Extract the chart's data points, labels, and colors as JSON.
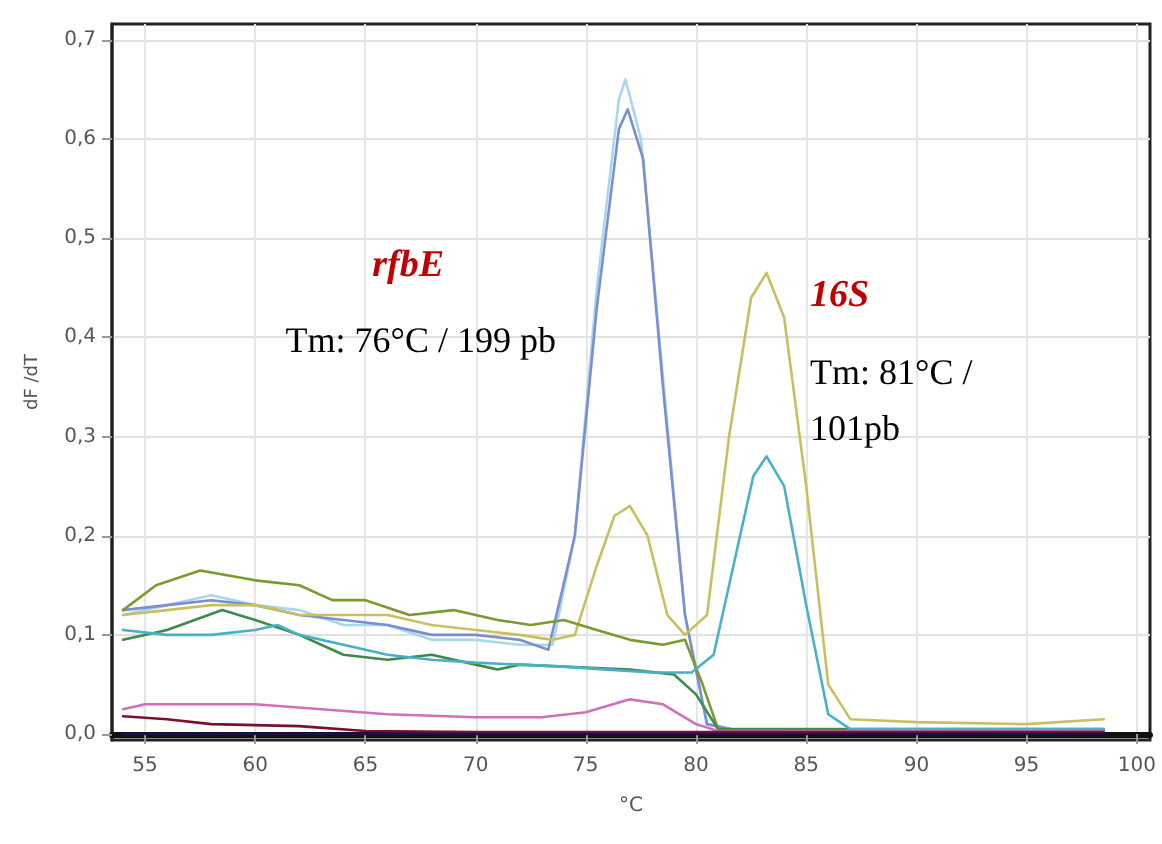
{
  "chart_data": {
    "type": "line",
    "xlabel": "°C",
    "ylabel": "dF /dT",
    "xlim": [
      53.5,
      100.6
    ],
    "xticks": [
      55,
      60,
      65,
      70,
      75,
      80,
      85,
      90,
      95,
      100
    ],
    "ylim": [
      -0.006,
      0.716
    ],
    "yticks": [
      {
        "value": 0,
        "label": "0,0"
      },
      {
        "value": 0.1,
        "label": "0,1"
      },
      {
        "value": 0.2,
        "label": "0,2"
      },
      {
        "value": 0.3,
        "label": "0,3"
      },
      {
        "value": 0.4,
        "label": "0,4"
      },
      {
        "value": 0.5,
        "label": "0,5"
      },
      {
        "value": 0.6,
        "label": "0,6"
      },
      {
        "value": 0.7,
        "label": "0,7"
      }
    ],
    "grid": true,
    "marker": "none",
    "line_style": "solid",
    "annotations": [
      "rfbE",
      "Tm: 76°C / 199 pb",
      "16S",
      "Tm: 81°C / 101pb"
    ],
    "series": [
      {
        "color": "#a9d6ea",
        "x": [
          54,
          56,
          58,
          60,
          62,
          64,
          66,
          68,
          70,
          72,
          73.5,
          74.5,
          75.5,
          76.5,
          76.8,
          77.5,
          78.5,
          79.5,
          80.5,
          82,
          98.5
        ],
        "values": [
          0.12,
          0.13,
          0.14,
          0.13,
          0.125,
          0.11,
          0.11,
          0.095,
          0.095,
          0.09,
          0.09,
          0.2,
          0.45,
          0.64,
          0.66,
          0.6,
          0.36,
          0.12,
          0.01,
          0.003,
          0.003
        ]
      },
      {
        "color": "#7b8fd0",
        "x": [
          54,
          56,
          58,
          60,
          62,
          64,
          66,
          68,
          70,
          72,
          73.3,
          74.5,
          75.5,
          76.5,
          76.9,
          77.6,
          78.5,
          79.5,
          80.5,
          82,
          98.5
        ],
        "values": [
          0.125,
          0.13,
          0.135,
          0.13,
          0.12,
          0.115,
          0.11,
          0.1,
          0.1,
          0.095,
          0.085,
          0.2,
          0.43,
          0.61,
          0.63,
          0.58,
          0.35,
          0.12,
          0.01,
          0.003,
          0.003
        ]
      },
      {
        "color": "#c8c060",
        "x": [
          54,
          56,
          58,
          60,
          62,
          64,
          66,
          68,
          70,
          72,
          73.5,
          74.5,
          75.5,
          76.3,
          77,
          77.8,
          78.7,
          79.5,
          80.5,
          81.5,
          82.5,
          83.2,
          84,
          85,
          86,
          87,
          90,
          95,
          98.5
        ],
        "values": [
          0.12,
          0.125,
          0.13,
          0.13,
          0.12,
          0.12,
          0.12,
          0.11,
          0.105,
          0.1,
          0.095,
          0.1,
          0.17,
          0.22,
          0.23,
          0.2,
          0.12,
          0.1,
          0.12,
          0.3,
          0.44,
          0.465,
          0.42,
          0.25,
          0.05,
          0.015,
          0.012,
          0.01,
          0.015
        ]
      },
      {
        "color": "#7a9a30",
        "x": [
          54,
          55.5,
          57.5,
          60,
          62,
          63.5,
          65,
          67,
          69,
          71,
          72.5,
          74,
          75.5,
          77,
          78.5,
          79.5,
          80.3,
          81,
          98.5
        ],
        "values": [
          0.125,
          0.15,
          0.165,
          0.155,
          0.15,
          0.135,
          0.135,
          0.12,
          0.125,
          0.115,
          0.11,
          0.115,
          0.105,
          0.095,
          0.09,
          0.095,
          0.05,
          0.005,
          0.005
        ]
      },
      {
        "color": "#3d8a4a",
        "x": [
          54,
          56,
          58.5,
          60,
          62,
          64,
          66,
          68,
          70,
          71,
          72,
          74,
          77,
          79,
          80,
          81,
          98.5
        ],
        "values": [
          0.095,
          0.105,
          0.125,
          0.115,
          0.1,
          0.08,
          0.075,
          0.08,
          0.07,
          0.065,
          0.07,
          0.068,
          0.065,
          0.06,
          0.04,
          0.005,
          0.004
        ]
      },
      {
        "color": "#48b0c8",
        "x": [
          54,
          56,
          58,
          60,
          61,
          62,
          64,
          66,
          68,
          70,
          72,
          74,
          76,
          78,
          79.8,
          80.8,
          81.8,
          82.6,
          83.2,
          84,
          85,
          86,
          87,
          98.5
        ],
        "values": [
          0.105,
          0.1,
          0.1,
          0.105,
          0.11,
          0.1,
          0.09,
          0.08,
          0.075,
          0.072,
          0.07,
          0.068,
          0.065,
          0.062,
          0.062,
          0.08,
          0.18,
          0.26,
          0.28,
          0.25,
          0.13,
          0.02,
          0.005,
          0.005
        ]
      },
      {
        "color": "#d070b8",
        "x": [
          54,
          55,
          58,
          60,
          63,
          66,
          70,
          73,
          75,
          77,
          78.5,
          80,
          81,
          98.5
        ],
        "values": [
          0.025,
          0.03,
          0.03,
          0.03,
          0.025,
          0.02,
          0.017,
          0.017,
          0.022,
          0.035,
          0.03,
          0.01,
          0.003,
          0.003
        ]
      },
      {
        "color": "#7a1030",
        "x": [
          54,
          56,
          58,
          62,
          65,
          70,
          98.5
        ],
        "values": [
          0.018,
          0.015,
          0.01,
          0.008,
          0.003,
          0.002,
          0.002
        ]
      },
      {
        "color": "#1a1050",
        "x": [
          54,
          98.5
        ],
        "values": [
          0,
          0
        ]
      }
    ]
  }
}
